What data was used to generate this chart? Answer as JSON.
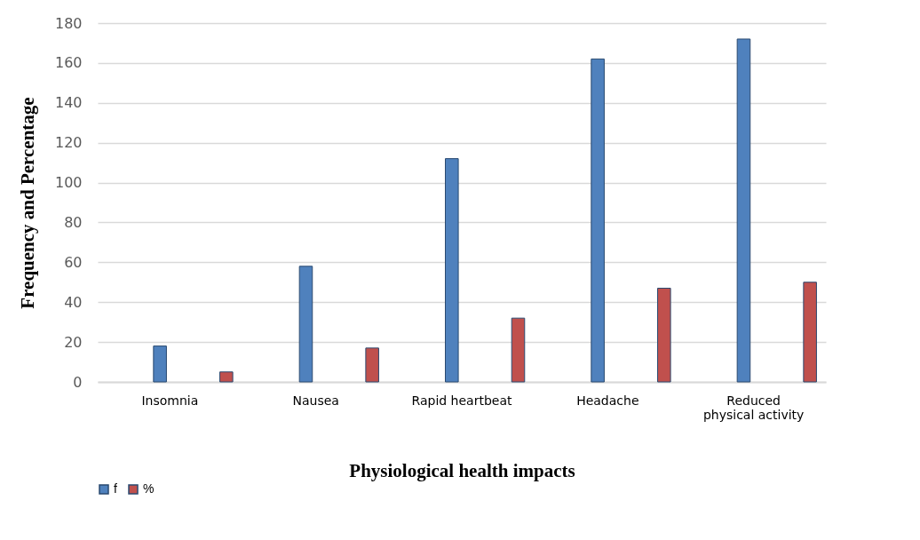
{
  "chart_data": {
    "type": "bar",
    "xlabel": "Physiological health impacts",
    "ylabel": "Frequency and Percentage",
    "categories": [
      "Insomnia",
      "Nausea",
      "Rapid heartbeat",
      "Headache",
      "Reduced physical activity"
    ],
    "series": [
      {
        "name": "f",
        "color": "#4f81bd",
        "values": [
          18,
          58,
          112,
          162,
          172
        ]
      },
      {
        "name": "%",
        "color": "#c0504d",
        "values": [
          5,
          17,
          32,
          47,
          50
        ]
      }
    ],
    "ylim": [
      0,
      180
    ],
    "yticks": [
      0,
      20,
      40,
      60,
      80,
      100,
      120,
      140,
      160,
      180
    ],
    "grid": "y",
    "legend": "bottom"
  }
}
